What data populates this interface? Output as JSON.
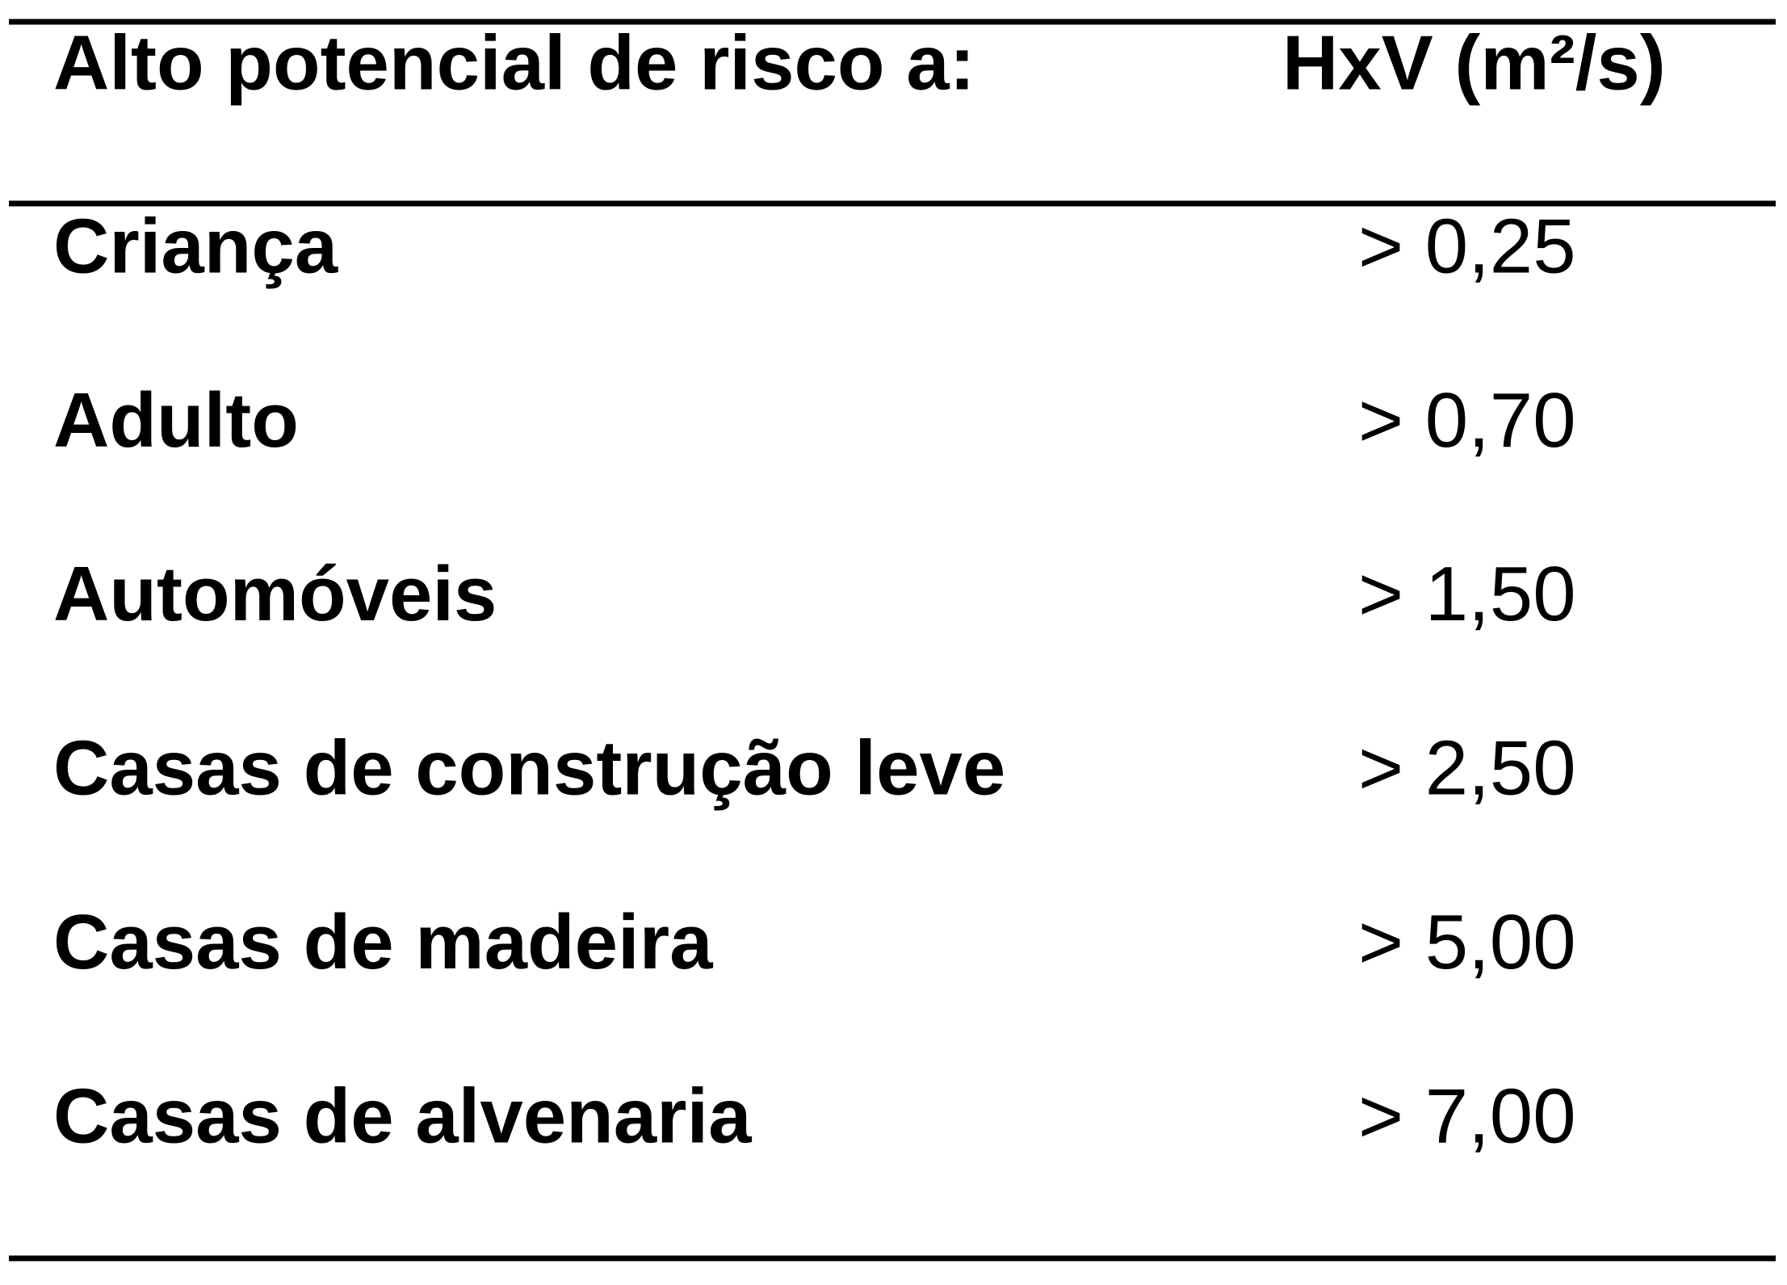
{
  "table": {
    "header": [
      "Alto potencial de risco a:",
      "HxV (m²/s)"
    ],
    "rows": [
      [
        "Criança",
        "> 0,25"
      ],
      [
        "Adulto",
        "> 0,70"
      ],
      [
        "Automóveis",
        "> 1,50"
      ],
      [
        "Casas de construção leve",
        "> 2,50"
      ],
      [
        "Casas de madeira",
        "> 5,00"
      ],
      [
        "Casas de alvenaria",
        "> 7,00"
      ]
    ]
  }
}
